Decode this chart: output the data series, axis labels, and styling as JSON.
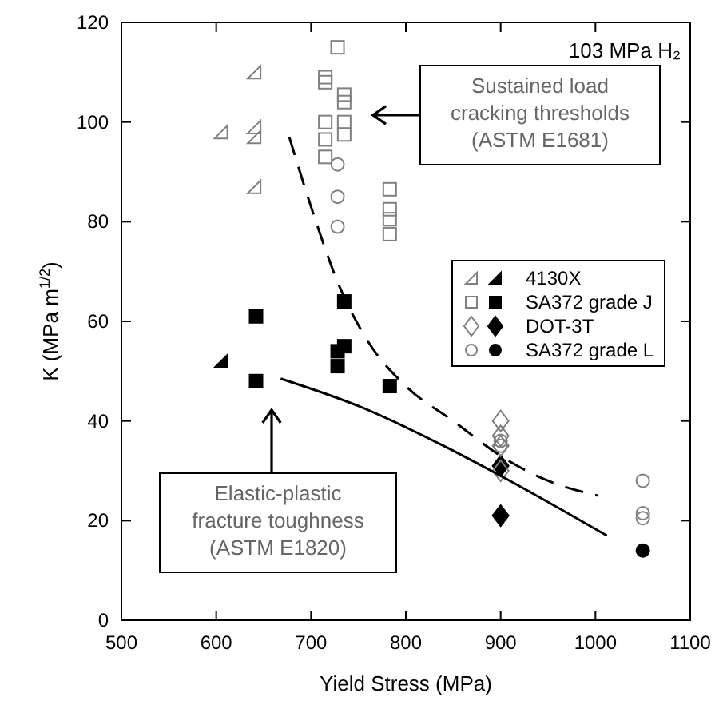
{
  "chart_data": {
    "type": "scatter",
    "xlabel": "Yield Stress (MPa)",
    "ylabel": "K (MPa m$^{1/2}$)",
    "xlim": [
      500,
      1100
    ],
    "ylim": [
      0,
      120
    ],
    "xticks": [
      500,
      600,
      700,
      800,
      900,
      1000,
      1100
    ],
    "yticks": [
      0,
      20,
      40,
      60,
      80,
      100,
      120
    ],
    "grid": false,
    "legend": "right",
    "series": [
      {
        "name": "4130X",
        "color": "#000000",
        "marker": "triangle",
        "x": [
          605
        ],
        "values": [
          52
        ]
      },
      {
        "color": "#808080",
        "marker": "triangle",
        "x": [
          605,
          640,
          640,
          640,
          640
        ],
        "values": [
          98,
          110,
          99,
          97,
          87
        ]
      },
      {
        "name": "SA372 grade J",
        "color": "#000000",
        "marker": "square",
        "x": [
          642,
          642,
          735,
          728,
          735,
          728,
          783
        ],
        "values": [
          61,
          48,
          64,
          54,
          55,
          51,
          47
        ]
      },
      {
        "color": "#808080",
        "marker": "square",
        "x": [
          728,
          715,
          715,
          735,
          735,
          715,
          715,
          715,
          735,
          735,
          783,
          783,
          783,
          783
        ],
        "values": [
          115,
          109,
          108,
          105.5,
          104,
          100,
          96.5,
          93,
          100,
          97.5,
          86.5,
          82.5,
          80.5,
          77.5
        ]
      },
      {
        "name": "DOT-3T",
        "color": "#000000",
        "marker": "diamond",
        "x": [
          900,
          900
        ],
        "values": [
          31,
          21
        ]
      },
      {
        "color": "#808080",
        "marker": "diamond",
        "x": [
          900,
          900,
          900,
          900
        ],
        "values": [
          40,
          37,
          35,
          30
        ]
      },
      {
        "name": "SA372 grade L",
        "color": "#000000",
        "marker": "circle",
        "x": [
          1050
        ],
        "values": [
          14
        ]
      },
      {
        "color": "#808080",
        "marker": "circle",
        "x": [
          728,
          728,
          728,
          900,
          900,
          1050,
          1050,
          1050
        ],
        "values": [
          91.5,
          85,
          79,
          36,
          35,
          28,
          21.5,
          20.5
        ]
      },
      {
        "type": "line",
        "color": "#000000",
        "marker": "none",
        "line_style": "dashed",
        "x": [
          677,
          700,
          730,
          760,
          800,
          850,
          900,
          950,
          1003
        ],
        "values": [
          97,
          83,
          67,
          56,
          47,
          40,
          33,
          28,
          25
        ]
      },
      {
        "type": "line",
        "color": "#000000",
        "marker": "none",
        "line_style": "solid",
        "x": [
          668,
          750,
          840,
          900,
          1012
        ],
        "values": [
          48.5,
          43,
          35,
          29,
          17
        ]
      }
    ],
    "annotations": [
      "103 MPa H₂",
      "Sustained load\ncracking thresholds\n(ASTM E1681)",
      "Elastic-plastic\nfracture toughness\n(ASTM E1820)"
    ]
  }
}
